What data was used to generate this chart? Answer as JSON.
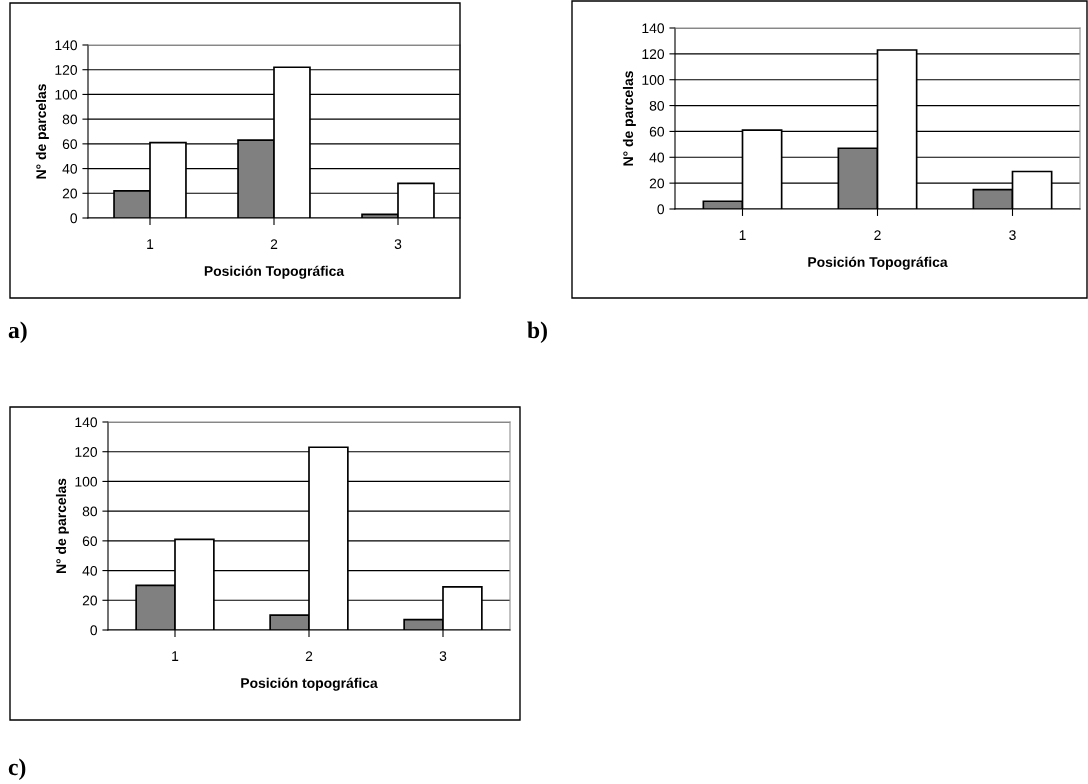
{
  "chart_data": [
    {
      "type": "bar",
      "categories": [
        "1",
        "2",
        "3"
      ],
      "xlabel": "Posición Topográfica",
      "ylabel": "N° de parcelas",
      "ylim": [
        0,
        140
      ],
      "yticks": [
        0,
        20,
        40,
        60,
        80,
        100,
        120,
        140
      ],
      "grid": "y",
      "annotations": [
        "a)"
      ],
      "series": [
        {
          "color": "#808080",
          "values": [
            22,
            63,
            3
          ]
        },
        {
          "color": "#ffffff",
          "values": [
            61,
            122,
            28
          ]
        }
      ]
    },
    {
      "type": "bar",
      "categories": [
        "1",
        "2",
        "3"
      ],
      "xlabel": "Posición Topográfica",
      "ylabel": "N° de parcelas",
      "ylim": [
        0,
        140
      ],
      "yticks": [
        0,
        20,
        40,
        60,
        80,
        100,
        120,
        140
      ],
      "grid": "y",
      "annotations": [
        "b)"
      ],
      "series": [
        {
          "color": "#808080",
          "values": [
            6,
            47,
            15
          ]
        },
        {
          "color": "#ffffff",
          "values": [
            61,
            123,
            29
          ]
        }
      ]
    },
    {
      "type": "bar",
      "categories": [
        "1",
        "2",
        "3"
      ],
      "xlabel": "Posición topográfica",
      "ylabel": "N° de parcelas",
      "ylim": [
        0,
        140
      ],
      "yticks": [
        0,
        20,
        40,
        60,
        80,
        100,
        120,
        140
      ],
      "grid": "y",
      "annotations": [
        "c)"
      ],
      "series": [
        {
          "color": "#808080",
          "values": [
            30,
            10,
            7
          ]
        },
        {
          "color": "#ffffff",
          "values": [
            61,
            123,
            29
          ]
        }
      ]
    }
  ]
}
